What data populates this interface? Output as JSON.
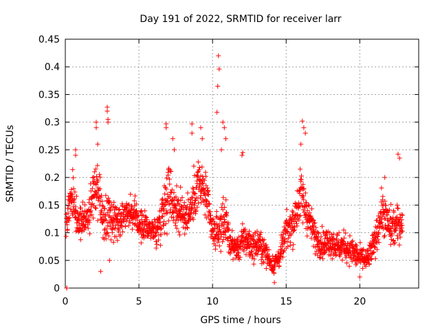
{
  "chart_data": {
    "type": "scatter",
    "title": "Day 191 of 2022, SRMTID for receiver larr",
    "xlabel": "GPS time / hours",
    "ylabel": "SRMTID / TECUs",
    "xlim": [
      0,
      24
    ],
    "ylim": [
      0,
      0.45
    ],
    "x_ticks": [
      0,
      5,
      10,
      15,
      20
    ],
    "y_ticks": [
      0,
      0.05,
      0.1,
      0.15,
      0.2,
      0.25,
      0.3,
      0.35,
      0.4,
      0.45
    ],
    "x_tick_labels": [
      "0",
      "5",
      "10",
      "15",
      "20"
    ],
    "y_tick_labels": [
      "0",
      "0.05",
      "0.1",
      "0.15",
      "0.2",
      "0.25",
      "0.3",
      "0.35",
      "0.4",
      "0.45"
    ],
    "grid": true,
    "legend": "none",
    "marker": "+",
    "color": "#ff0000",
    "envelope_note": "",
    "profile": [
      [
        0.0,
        0.11,
        0.025
      ],
      [
        0.3,
        0.15,
        0.035
      ],
      [
        0.5,
        0.17,
        0.04
      ],
      [
        0.8,
        0.12,
        0.03
      ],
      [
        1.2,
        0.13,
        0.03
      ],
      [
        1.6,
        0.13,
        0.03
      ],
      [
        2.0,
        0.18,
        0.05
      ],
      [
        2.3,
        0.17,
        0.04
      ],
      [
        2.6,
        0.12,
        0.035
      ],
      [
        2.9,
        0.13,
        0.04
      ],
      [
        3.3,
        0.12,
        0.035
      ],
      [
        3.8,
        0.13,
        0.03
      ],
      [
        4.3,
        0.14,
        0.025
      ],
      [
        4.7,
        0.13,
        0.025
      ],
      [
        5.2,
        0.11,
        0.025
      ],
      [
        5.7,
        0.11,
        0.025
      ],
      [
        6.2,
        0.1,
        0.025
      ],
      [
        6.6,
        0.14,
        0.04
      ],
      [
        7.0,
        0.18,
        0.055
      ],
      [
        7.4,
        0.15,
        0.04
      ],
      [
        8.0,
        0.13,
        0.035
      ],
      [
        8.5,
        0.14,
        0.035
      ],
      [
        9.0,
        0.19,
        0.045
      ],
      [
        9.5,
        0.17,
        0.04
      ],
      [
        10.0,
        0.1,
        0.03
      ],
      [
        10.4,
        0.1,
        0.03
      ],
      [
        10.8,
        0.13,
        0.045
      ],
      [
        11.2,
        0.08,
        0.02
      ],
      [
        11.7,
        0.07,
        0.02
      ],
      [
        12.2,
        0.09,
        0.03
      ],
      [
        12.7,
        0.075,
        0.025
      ],
      [
        13.2,
        0.08,
        0.025
      ],
      [
        13.7,
        0.06,
        0.02
      ],
      [
        14.1,
        0.04,
        0.015
      ],
      [
        14.6,
        0.06,
        0.02
      ],
      [
        15.0,
        0.1,
        0.03
      ],
      [
        15.5,
        0.12,
        0.035
      ],
      [
        16.0,
        0.17,
        0.045
      ],
      [
        16.5,
        0.13,
        0.035
      ],
      [
        17.0,
        0.09,
        0.025
      ],
      [
        17.5,
        0.08,
        0.025
      ],
      [
        18.0,
        0.085,
        0.025
      ],
      [
        18.5,
        0.075,
        0.025
      ],
      [
        19.0,
        0.075,
        0.025
      ],
      [
        19.5,
        0.065,
        0.025
      ],
      [
        20.0,
        0.055,
        0.02
      ],
      [
        20.5,
        0.05,
        0.02
      ],
      [
        21.0,
        0.08,
        0.025
      ],
      [
        21.5,
        0.14,
        0.035
      ],
      [
        22.0,
        0.11,
        0.035
      ],
      [
        22.4,
        0.11,
        0.035
      ],
      [
        22.8,
        0.12,
        0.03
      ]
    ],
    "spikes": [
      [
        0.1,
        0.0
      ],
      [
        0.1,
        0.0
      ],
      [
        0.7,
        0.25
      ],
      [
        0.7,
        0.24
      ],
      [
        2.1,
        0.3
      ],
      [
        2.1,
        0.29
      ],
      [
        2.85,
        0.327
      ],
      [
        2.85,
        0.32
      ],
      [
        2.9,
        0.305
      ],
      [
        2.9,
        0.3
      ],
      [
        3.0,
        0.05
      ],
      [
        2.2,
        0.26
      ],
      [
        6.85,
        0.297
      ],
      [
        6.85,
        0.29
      ],
      [
        7.4,
        0.25
      ],
      [
        7.3,
        0.27
      ],
      [
        8.6,
        0.297
      ],
      [
        8.6,
        0.28
      ],
      [
        9.2,
        0.29
      ],
      [
        9.3,
        0.27
      ],
      [
        10.4,
        0.42
      ],
      [
        10.45,
        0.396
      ],
      [
        10.35,
        0.365
      ],
      [
        10.3,
        0.318
      ],
      [
        10.7,
        0.3
      ],
      [
        10.8,
        0.29
      ],
      [
        10.9,
        0.27
      ],
      [
        10.6,
        0.25
      ],
      [
        12.0,
        0.24
      ],
      [
        12.05,
        0.245
      ],
      [
        16.1,
        0.302
      ],
      [
        16.2,
        0.29
      ],
      [
        16.3,
        0.28
      ],
      [
        16.0,
        0.26
      ],
      [
        22.6,
        0.242
      ],
      [
        22.7,
        0.235
      ],
      [
        21.7,
        0.2
      ],
      [
        2.4,
        0.03
      ],
      [
        14.2,
        0.01
      ],
      [
        20.0,
        0.02
      ]
    ]
  }
}
